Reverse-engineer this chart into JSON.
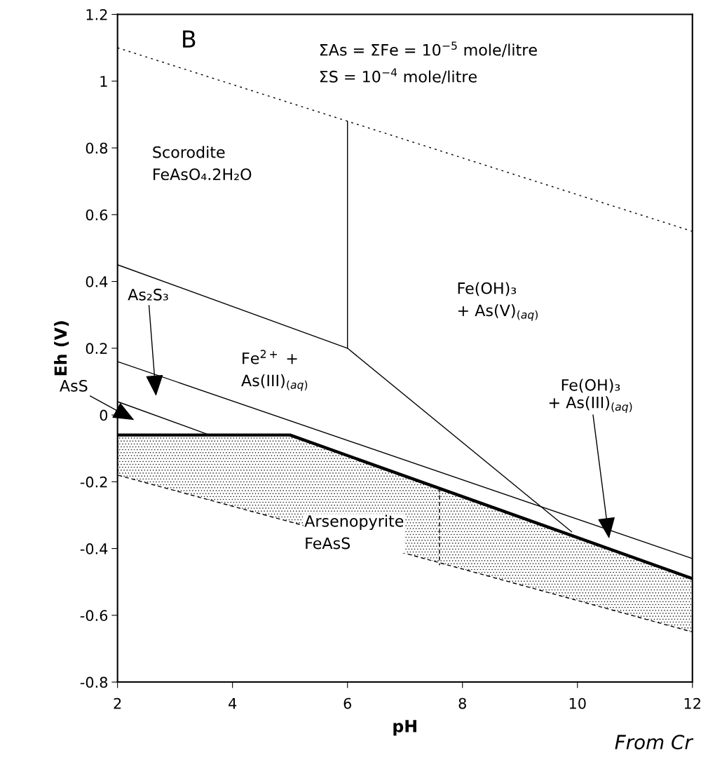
{
  "chart_data": {
    "type": "line",
    "xlabel": "pH",
    "ylabel": "Eh (V)",
    "xlim": [
      2,
      12
    ],
    "ylim": [
      -0.8,
      1.2
    ],
    "xticks": [
      2,
      4,
      6,
      8,
      10,
      12
    ],
    "yticks": [
      -0.8,
      -0.6,
      -0.4,
      -0.2,
      0,
      0.2,
      0.4,
      0.6,
      0.8,
      1,
      1.2
    ],
    "grid": false,
    "marker": "none",
    "series": [
      {
        "color": "#000000",
        "x": [
          2,
          12
        ],
        "values": [
          1.1,
          0.55
        ],
        "line_style": "dotted"
      },
      {
        "color": "#000000",
        "x": [
          6,
          6
        ],
        "values": [
          0.2,
          0.88
        ],
        "line_style": "solid"
      },
      {
        "color": "#000000",
        "x": [
          2,
          6,
          9.9
        ],
        "values": [
          0.45,
          0.2,
          -0.35
        ],
        "line_style": "solid"
      },
      {
        "color": "#000000",
        "x": [
          2,
          12
        ],
        "values": [
          0.16,
          -0.43
        ],
        "line_style": "solid"
      },
      {
        "color": "#000000",
        "x": [
          2,
          3.6
        ],
        "values": [
          0.04,
          -0.06
        ],
        "line_style": "solid"
      },
      {
        "color": "#000000",
        "x": [
          2,
          5,
          12
        ],
        "values": [
          -0.06,
          -0.06,
          -0.49
        ],
        "lower": [
          -0.18,
          -0.32,
          -0.65
        ],
        "upper": [
          -0.06,
          -0.06,
          -0.49
        ],
        "line_style": "solid"
      },
      {
        "color": "#000000",
        "x": [
          7.6,
          7.6
        ],
        "values": [
          -0.22,
          -0.45
        ],
        "line_style": "dashed"
      }
    ],
    "annotations": [
      "B",
      "ΣAs = ΣFe = 10$^{−5}$ mole/litre",
      "ΣS = 10$^{−4}$ mole/litre",
      "Scorodite\nFeAsO₄.2H₂O",
      "Fe(OH)₃\n+ As(V)$_{(aq)}$",
      "Fe$^{2+}$ +\nAs(III)$_{(aq)}$",
      "Arsenopyrite\nFeAsS",
      "As₂S₃",
      "AsS",
      "Fe(OH)₃\n+ As(III)$_{(aq)}$",
      "From Cr"
    ]
  }
}
